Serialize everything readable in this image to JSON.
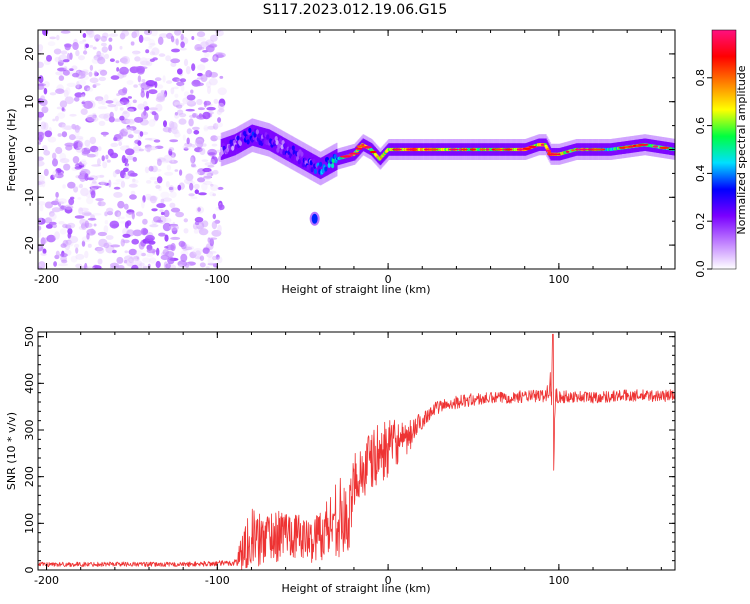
{
  "title": "S117.2023.012.19.06.G15",
  "colors": {
    "snr_line": "#ee3333",
    "axis": "#000000",
    "colormap": [
      "#ffffff",
      "#c080ff",
      "#7a00ff",
      "#0000ff",
      "#00e0ff",
      "#00ff40",
      "#ffff00",
      "#ff8000",
      "#ff0000",
      "#ff1080"
    ]
  },
  "chart_data": [
    {
      "type": "heatmap",
      "name": "spectrogram",
      "xlabel": "Height of straight line (km)",
      "ylabel": "Frequency (Hz)",
      "xlim": [
        -205,
        168
      ],
      "ylim": [
        -25,
        25
      ],
      "xticks": [
        -200,
        -100,
        0,
        100
      ],
      "xtick_labels": [
        "-200",
        "-100",
        "0",
        "100"
      ],
      "yticks": [
        20,
        10,
        0,
        -10,
        -20
      ],
      "ytick_labels": [
        "20",
        "10",
        "0",
        "-10",
        "-20"
      ],
      "colorbar": {
        "label": "Normalized spectral amplitude",
        "range": [
          0,
          1
        ],
        "ticks": [
          0.0,
          0.2,
          0.4,
          0.6,
          0.8
        ],
        "tick_labels": [
          "0.0",
          "0.2",
          "0.4",
          "0.6",
          "0.8"
        ]
      },
      "noise_region_x": [
        -205,
        -97
      ],
      "tone_track": {
        "x": [
          -98,
          -90,
          -80,
          -70,
          -60,
          -50,
          -45,
          -40,
          -30,
          -20,
          -15,
          -10,
          -5,
          0,
          10,
          20,
          40,
          60,
          80,
          88,
          92,
          95,
          100,
          110,
          130,
          150,
          168
        ],
        "freq": [
          0,
          1,
          3,
          2,
          0,
          -2,
          -3,
          -4,
          -2,
          -1,
          1,
          0,
          -2,
          0,
          0,
          0,
          0,
          0,
          0,
          1,
          1,
          -1,
          -1,
          0,
          0,
          1,
          0
        ],
        "amplitude": [
          0.3,
          0.35,
          0.4,
          0.35,
          0.35,
          0.4,
          0.4,
          0.45,
          0.6,
          0.7,
          0.9,
          0.7,
          0.8,
          0.8,
          0.85,
          0.9,
          0.7,
          0.75,
          0.85,
          0.8,
          0.85,
          0.9,
          0.8,
          0.7,
          0.65,
          0.7,
          0.65
        ]
      },
      "blob": {
        "x": -43,
        "freq": -14.5,
        "amplitude": 0.35
      }
    },
    {
      "type": "line",
      "name": "snr",
      "xlabel": "Height of straight line (km)",
      "ylabel": "SNR (10 * v/v)",
      "xlim": [
        -205,
        168
      ],
      "ylim": [
        0,
        510
      ],
      "xticks": [
        -200,
        -100,
        0,
        100
      ],
      "xtick_labels": [
        "-200",
        "-100",
        "0",
        "100"
      ],
      "yticks": [
        0,
        100,
        200,
        300,
        400,
        500
      ],
      "ytick_labels": [
        "0",
        "100",
        "200",
        "300",
        "400",
        "500"
      ],
      "series": [
        {
          "name": "SNR",
          "x": [
            -205,
            -180,
            -160,
            -140,
            -120,
            -100,
            -90,
            -85,
            -80,
            -75,
            -70,
            -65,
            -60,
            -55,
            -50,
            -45,
            -40,
            -35,
            -30,
            -25,
            -22,
            -20,
            -15,
            -10,
            -5,
            0,
            5,
            10,
            15,
            20,
            25,
            30,
            35,
            40,
            50,
            60,
            70,
            80,
            90,
            94,
            96,
            97,
            98,
            100,
            110,
            120,
            140,
            160,
            168
          ],
          "y": [
            12,
            12,
            13,
            12,
            12,
            14,
            15,
            40,
            75,
            60,
            80,
            70,
            85,
            75,
            70,
            60,
            80,
            90,
            120,
            100,
            110,
            200,
            210,
            230,
            250,
            260,
            275,
            270,
            300,
            320,
            340,
            350,
            355,
            360,
            365,
            368,
            370,
            372,
            373,
            380,
            400,
            250,
            390,
            370,
            372,
            370,
            374,
            373,
            375
          ],
          "noise_amp": [
            5,
            5,
            5,
            5,
            5,
            6,
            6,
            50,
            60,
            60,
            55,
            55,
            50,
            50,
            45,
            45,
            60,
            70,
            90,
            80,
            80,
            60,
            70,
            70,
            65,
            60,
            50,
            40,
            30,
            18,
            15,
            14,
            14,
            14,
            14,
            13,
            13,
            13,
            14,
            20,
            60,
            60,
            30,
            14,
            13,
            13,
            13,
            13,
            13
          ]
        }
      ]
    }
  ]
}
